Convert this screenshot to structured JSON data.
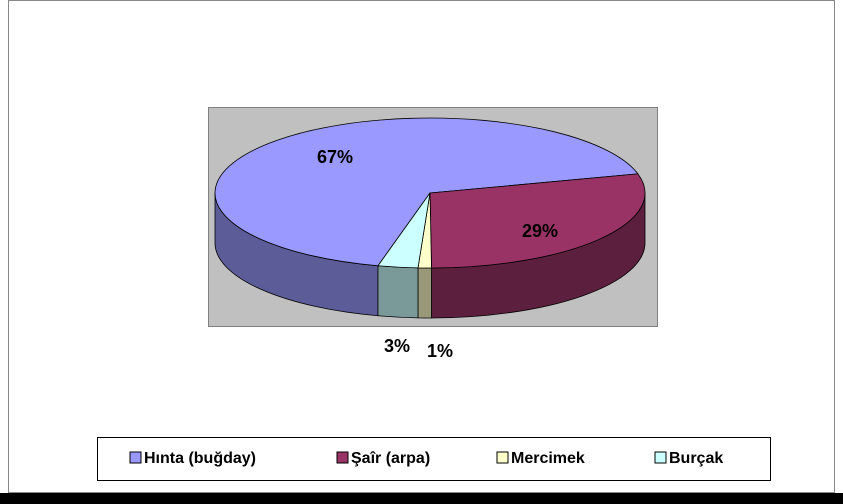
{
  "chart_data": {
    "type": "pie3d",
    "categories": [
      "Hınta (buğday)",
      "Şaîr (arpa)",
      "Mercimek",
      "Burçak"
    ],
    "values": [
      67,
      29,
      1,
      3
    ],
    "value_labels": [
      "67%",
      "29%",
      "1%",
      "3%"
    ],
    "colors": [
      "#9999ff",
      "#993366",
      "#ffffcc",
      "#ccffff"
    ]
  }
}
